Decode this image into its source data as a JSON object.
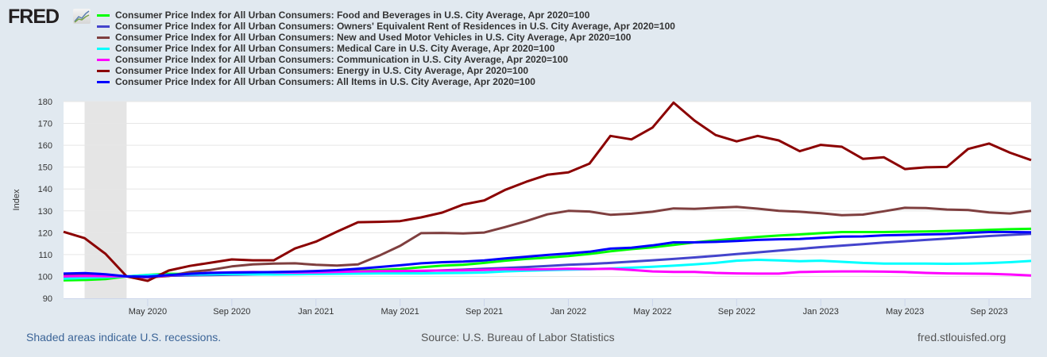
{
  "header": {
    "logo_text": "FRED"
  },
  "chart_data": {
    "type": "line",
    "title": "",
    "xlabel": "",
    "ylabel": "Index",
    "ylim": [
      90,
      180
    ],
    "yticks": [
      90,
      100,
      110,
      120,
      130,
      140,
      150,
      160,
      170,
      180
    ],
    "x_start": "Jan 2020",
    "x_end": "Nov 2023",
    "xticks": [
      {
        "label": "May 2020",
        "month_index": 4
      },
      {
        "label": "Sep 2020",
        "month_index": 8
      },
      {
        "label": "Jan 2021",
        "month_index": 12
      },
      {
        "label": "May 2021",
        "month_index": 16
      },
      {
        "label": "Sep 2021",
        "month_index": 20
      },
      {
        "label": "Jan 2022",
        "month_index": 24
      },
      {
        "label": "May 2022",
        "month_index": 28
      },
      {
        "label": "Sep 2022",
        "month_index": 32
      },
      {
        "label": "Jan 2023",
        "month_index": 36
      },
      {
        "label": "May 2023",
        "month_index": 40
      },
      {
        "label": "Sep 2023",
        "month_index": 44
      }
    ],
    "recessions": [
      {
        "start_month_index": 1,
        "end_month_index": 3
      }
    ],
    "grid": true,
    "legend_placement": "top-left",
    "series": [
      {
        "name": "Consumer Price Index for All Urban Consumers: Food and Beverages in U.S. City Average, Apr 2020=100",
        "color": "#00ff00",
        "values": [
          98.2,
          98.4,
          98.8,
          100,
          100.7,
          101.2,
          101.1,
          101.3,
          101.4,
          101.6,
          101.7,
          101.9,
          102.2,
          102.4,
          102.6,
          103,
          103.4,
          104.2,
          104.9,
          105.3,
          106.2,
          107.2,
          108,
          108.6,
          109.3,
          110.3,
          111.5,
          112.5,
          113.3,
          114.4,
          115.6,
          116.5,
          117.3,
          118.1,
          118.7,
          119.2,
          119.8,
          120.3,
          120.3,
          120.3,
          120.5,
          120.6,
          120.8,
          121,
          121.3,
          121.6,
          121.8
        ]
      },
      {
        "name": "Consumer Price Index for All Urban Consumers: Owners' Equivalent Rent of Residences in U.S. City Average, Apr 2020=100",
        "color": "#4444cc",
        "values": [
          99.3,
          99.6,
          99.8,
          100,
          100.2,
          100.3,
          100.5,
          100.6,
          100.8,
          100.9,
          101.1,
          101.2,
          101.4,
          101.6,
          101.8,
          102,
          102.2,
          102.5,
          102.8,
          103.1,
          103.5,
          103.9,
          104.3,
          104.8,
          105.3,
          105.7,
          106.2,
          106.8,
          107.4,
          108,
          108.7,
          109.4,
          110.2,
          111,
          111.8,
          112.6,
          113.4,
          114.1,
          114.8,
          115.5,
          116.1,
          116.7,
          117.3,
          117.9,
          118.5,
          119,
          119.5
        ]
      },
      {
        "name": "Consumer Price Index for All Urban Consumers: New and Used Motor Vehicles in U.S. City Average, Apr 2020=100",
        "color": "#7f3f3f",
        "values": [
          100.5,
          100.6,
          100.3,
          100,
          99.5,
          100.2,
          102,
          103,
          104.6,
          105.5,
          105.9,
          106,
          105.3,
          105,
          105.5,
          109.5,
          114,
          119.8,
          119.9,
          119.7,
          120.1,
          122.6,
          125.3,
          128.4,
          130,
          129.7,
          128.2,
          128.7,
          129.6,
          131.1,
          130.9,
          131.4,
          131.8,
          131,
          130,
          129.6,
          128.9,
          128,
          128.3,
          129.8,
          131.4,
          131.3,
          130.6,
          130.4,
          129.3,
          128.8,
          130
        ]
      },
      {
        "name": "Consumer Price Index for All Urban Consumers: Medical Care in U.S. City Average, Apr 2020=100",
        "color": "#00ffff",
        "values": [
          99,
          99.3,
          99.6,
          100,
          100.6,
          100.8,
          100.9,
          101,
          101.1,
          101,
          100.9,
          101,
          101.1,
          101.2,
          101.3,
          101.4,
          101.4,
          101.4,
          101.5,
          101.6,
          101.8,
          102.3,
          102.6,
          102.9,
          103.1,
          103.3,
          103.6,
          104,
          104.4,
          104.9,
          105.5,
          106.2,
          107.2,
          107.6,
          107.3,
          107,
          107.2,
          106.7,
          106.2,
          105.9,
          105.9,
          105.9,
          105.8,
          105.9,
          106.1,
          106.5,
          107.1
        ]
      },
      {
        "name": "Consumer Price Index for All Urban Consumers: Communication in U.S. City Average, Apr 2020=100",
        "color": "#ff00ff",
        "values": [
          100,
          100.2,
          100.1,
          100,
          99.7,
          100.5,
          101.2,
          101.7,
          101.9,
          102,
          101.9,
          101.8,
          101.9,
          102.1,
          102.3,
          102.4,
          102.5,
          102.6,
          102.7,
          102.8,
          103,
          103.3,
          103.2,
          103.3,
          103.5,
          103.4,
          103.5,
          103,
          102.3,
          102.1,
          102.1,
          101.6,
          101.4,
          101.3,
          101.3,
          102,
          102.2,
          102.3,
          102.3,
          102.2,
          102,
          101.6,
          101.4,
          101.3,
          101.2,
          100.9,
          100.4
        ]
      },
      {
        "name": "Consumer Price Index for All Urban Consumers: Energy in U.S. City Average, Apr 2020=100",
        "color": "#8b0000",
        "values": [
          120.4,
          117.5,
          110.3,
          100,
          98,
          102.7,
          104.8,
          106.3,
          107.8,
          107.4,
          107.4,
          112.8,
          115.9,
          120.5,
          124.8,
          125,
          125.3,
          127,
          129.2,
          132.9,
          134.8,
          139.6,
          143.3,
          146.5,
          147.6,
          151.6,
          164.3,
          162.7,
          168.1,
          179.5,
          171.3,
          164.7,
          161.8,
          164.3,
          162.2,
          157.3,
          160.2,
          159.3,
          153.8,
          154.5,
          149.1,
          149.9,
          150.1,
          158.3,
          160.8,
          156.6,
          153.2
        ]
      },
      {
        "name": "Consumer Price Index for All Urban Consumers: All Items in U.S. City Average, Apr 2020=100",
        "color": "#0000ff",
        "values": [
          101.3,
          101.5,
          101,
          100,
          99.9,
          100.6,
          101.2,
          101.6,
          101.8,
          101.9,
          102,
          102.2,
          102.5,
          102.9,
          103.5,
          104.3,
          105.1,
          106,
          106.5,
          106.8,
          107.3,
          108.2,
          109,
          109.8,
          110.5,
          111.3,
          112.7,
          113.1,
          114.2,
          115.6,
          115.6,
          115.8,
          116.2,
          116.7,
          117,
          117.1,
          117.7,
          118.2,
          118.3,
          118.8,
          119,
          119.2,
          119.4,
          119.9,
          120.3,
          120.3,
          120.2
        ]
      }
    ]
  },
  "footer": {
    "recession_note": "Shaded areas indicate U.S. recessions.",
    "source": "Source: U.S. Bureau of Labor Statistics",
    "site": "fred.stlouisfed.org"
  }
}
